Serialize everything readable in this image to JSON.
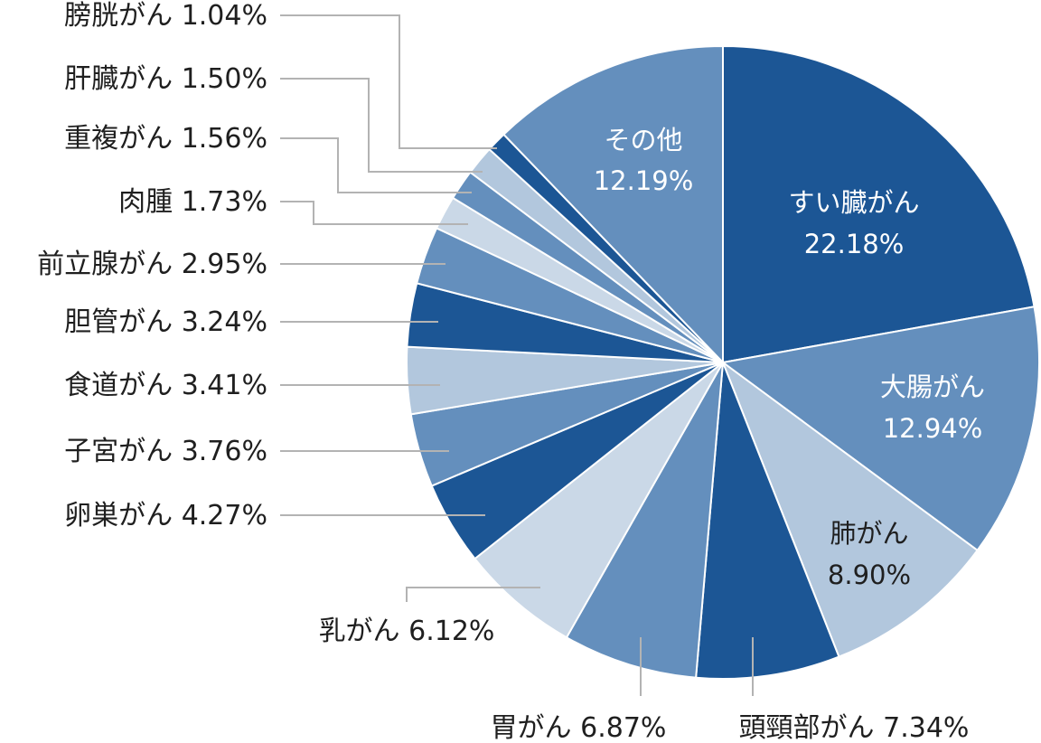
{
  "chart_data": {
    "type": "pie",
    "start_angle_deg": 0,
    "direction": "clockwise",
    "slices": [
      {
        "label": "すい臓がん",
        "value": 22.18,
        "display": "22.18%",
        "color": "#1c5695",
        "label_mode": "inside",
        "text_color": "#ffffff"
      },
      {
        "label": "大腸がん",
        "value": 12.94,
        "display": "12.94%",
        "color": "#648fbd",
        "label_mode": "inside",
        "text_color": "#ffffff"
      },
      {
        "label": "肺がん",
        "value": 8.9,
        "display": "8.90%",
        "color": "#b2c7dd",
        "label_mode": "inside",
        "text_color": "#1f1f1f"
      },
      {
        "label": "頭頸部がん",
        "value": 7.34,
        "display": "7.34%",
        "color": "#1c5695",
        "label_mode": "outside"
      },
      {
        "label": "胃がん",
        "value": 6.87,
        "display": "6.87%",
        "color": "#648fbd",
        "label_mode": "outside"
      },
      {
        "label": "乳がん",
        "value": 6.12,
        "display": "6.12%",
        "color": "#cad8e7",
        "label_mode": "outside"
      },
      {
        "label": "卵巣がん",
        "value": 4.27,
        "display": "4.27%",
        "color": "#1c5695",
        "label_mode": "outside"
      },
      {
        "label": "子宮がん",
        "value": 3.76,
        "display": "3.76%",
        "color": "#648fbd",
        "label_mode": "outside"
      },
      {
        "label": "食道がん",
        "value": 3.41,
        "display": "3.41%",
        "color": "#b2c7dd",
        "label_mode": "outside"
      },
      {
        "label": "胆管がん",
        "value": 3.24,
        "display": "3.24%",
        "color": "#1c5695",
        "label_mode": "outside"
      },
      {
        "label": "前立腺がん",
        "value": 2.95,
        "display": "2.95%",
        "color": "#648fbd",
        "label_mode": "outside"
      },
      {
        "label": "肉腫",
        "value": 1.73,
        "display": "1.73%",
        "color": "#cad8e7",
        "label_mode": "outside"
      },
      {
        "label": "重複がん",
        "value": 1.56,
        "display": "1.56%",
        "color": "#648fbd",
        "label_mode": "outside"
      },
      {
        "label": "肝臓がん",
        "value": 1.5,
        "display": "1.50%",
        "color": "#b2c7dd",
        "label_mode": "outside"
      },
      {
        "label": "膀胱がん",
        "value": 1.04,
        "display": "1.04%",
        "color": "#1c5695",
        "label_mode": "outside"
      },
      {
        "label": "その他",
        "value": 12.19,
        "display": "12.19%",
        "color": "#648fbd",
        "label_mode": "inside",
        "text_color": "#ffffff"
      }
    ]
  }
}
